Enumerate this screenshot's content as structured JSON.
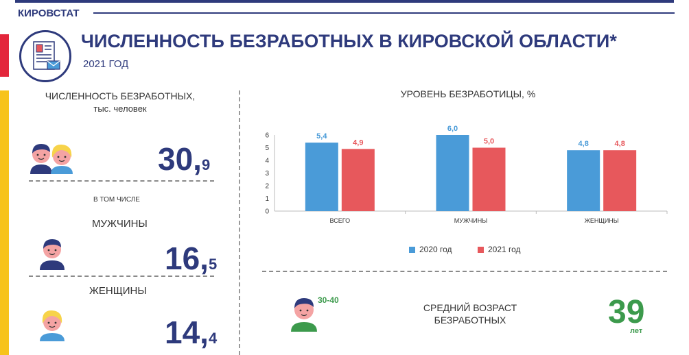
{
  "header": {
    "brand": "КИРОВСТАТ",
    "title": "ЧИСЛЕННОСТЬ БЕЗРАБОТНЫХ В КИРОВСКОЙ ОБЛАСТИ*",
    "subtitle": "2021 ГОД"
  },
  "left": {
    "heading_line1": "ЧИСЛЕННОСТЬ БЕЗРАБОТНЫХ,",
    "heading_line2": "тыс. человек",
    "total": {
      "int": "30",
      "comma": ",",
      "frac": "9"
    },
    "in_total_label": "В ТОМ ЧИСЛЕ",
    "men_label": "МУЖЧИНЫ",
    "men": {
      "int": "16",
      "comma": ",",
      "frac": "5"
    },
    "women_label": "ЖЕНЩИНЫ",
    "women": {
      "int": "14",
      "comma": ",",
      "frac": "4"
    }
  },
  "age": {
    "range": "30-40",
    "label_line1": "СРЕДНИЙ ВОЗРАСТ",
    "label_line2": "БЕЗРАБОТНЫХ",
    "value": "39",
    "unit": "лет"
  },
  "colors": {
    "navy": "#2e3a7c",
    "series_2020": "#4a9bd8",
    "series_2021": "#e7585c",
    "green": "#3c9a4c"
  },
  "chart_data": {
    "type": "bar",
    "title": "УРОВЕНЬ БЕЗРАБОТИЦЫ, %",
    "categories": [
      "ВСЕГО",
      "МУЖЧИНЫ",
      "ЖЕНЩИНЫ"
    ],
    "series": [
      {
        "name": "2020 год",
        "values": [
          5.4,
          6.0,
          4.8
        ],
        "labels": [
          "5,4",
          "6,0",
          "4,8"
        ]
      },
      {
        "name": "2021 год",
        "values": [
          4.9,
          5.0,
          4.8
        ],
        "labels": [
          "4,9",
          "5,0",
          "4,8"
        ]
      }
    ],
    "ylim": [
      0,
      6
    ],
    "yticks": [
      0,
      1,
      2,
      3,
      4,
      5,
      6
    ],
    "xlabel": "",
    "ylabel": "",
    "legend": "bottom"
  }
}
